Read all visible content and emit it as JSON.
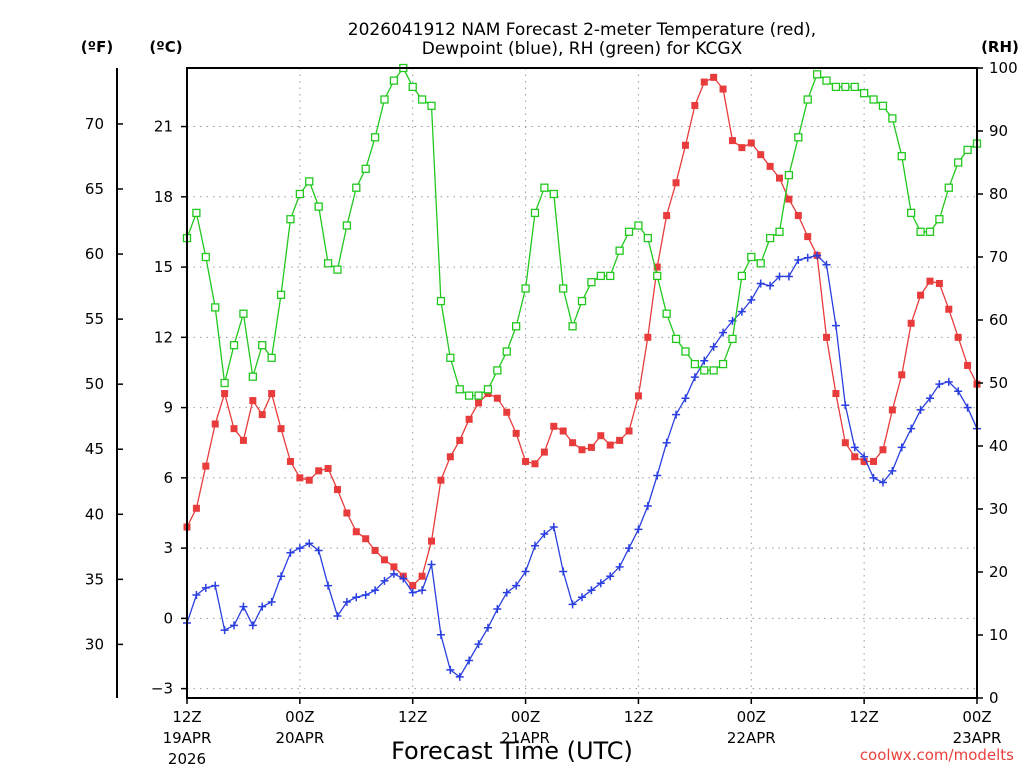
{
  "chart_data": {
    "type": "line",
    "title_line1": "2026041912 NAM Forecast 2-meter Temperature (red),",
    "title_line2": "Dewpoint (blue), RH (green) for KCGX",
    "xlabel": "Forecast Time (UTC)",
    "credit": "coolwx.com/modelts",
    "units": {
      "fahrenheit": "(ºF)",
      "celsius": "(ºC)",
      "rh": "(RH)"
    },
    "x_hours": [
      0,
      1,
      2,
      3,
      4,
      5,
      6,
      7,
      8,
      9,
      10,
      11,
      12,
      13,
      14,
      15,
      16,
      17,
      18,
      19,
      20,
      21,
      22,
      23,
      24,
      25,
      26,
      27,
      28,
      29,
      30,
      31,
      32,
      33,
      34,
      35,
      36,
      37,
      38,
      39,
      40,
      41,
      42,
      43,
      44,
      45,
      46,
      47,
      48,
      49,
      50,
      51,
      52,
      53,
      54,
      55,
      56,
      57,
      58,
      59,
      60,
      61,
      62,
      63,
      64,
      65,
      66,
      67,
      68,
      69,
      70,
      71,
      72,
      73,
      74,
      75,
      76,
      77,
      78,
      79,
      80,
      81,
      82,
      83,
      84
    ],
    "x_ticks": [
      {
        "hour": 0,
        "label": "12Z",
        "sub1": "19APR",
        "sub2": "2026"
      },
      {
        "hour": 12,
        "label": "00Z",
        "sub1": "20APR",
        "sub2": ""
      },
      {
        "hour": 24,
        "label": "12Z",
        "sub1": "",
        "sub2": ""
      },
      {
        "hour": 36,
        "label": "00Z",
        "sub1": "21APR",
        "sub2": ""
      },
      {
        "hour": 48,
        "label": "12Z",
        "sub1": "",
        "sub2": ""
      },
      {
        "hour": 60,
        "label": "00Z",
        "sub1": "22APR",
        "sub2": ""
      },
      {
        "hour": 72,
        "label": "12Z",
        "sub1": "",
        "sub2": ""
      },
      {
        "hour": 84,
        "label": "00Z",
        "sub1": "23APR",
        "sub2": ""
      }
    ],
    "x_range": [
      0,
      84
    ],
    "y_celsius_range": [
      -3.4,
      23.5
    ],
    "y_celsius_ticks": [
      -3,
      0,
      3,
      6,
      9,
      12,
      15,
      18,
      21
    ],
    "y_fahrenheit_ticks": [
      30,
      35,
      40,
      45,
      50,
      55,
      60,
      65,
      70
    ],
    "y_rh_range": [
      0,
      100
    ],
    "y_rh_ticks": [
      0,
      10,
      20,
      30,
      40,
      50,
      60,
      70,
      80,
      90,
      100
    ],
    "grid": true,
    "series": [
      {
        "name": "Temperature",
        "color": "#e83b3b",
        "marker": "filled-square",
        "axis": "celsius",
        "values": [
          3.9,
          4.7,
          6.5,
          8.3,
          9.6,
          8.1,
          7.6,
          9.3,
          8.7,
          9.6,
          8.1,
          6.7,
          6.0,
          5.9,
          6.3,
          6.4,
          5.5,
          4.5,
          3.7,
          3.4,
          2.9,
          2.5,
          2.2,
          1.8,
          1.4,
          1.8,
          3.3,
          5.9,
          6.9,
          7.6,
          8.5,
          9.2,
          9.6,
          9.4,
          8.8,
          7.9,
          6.7,
          6.6,
          7.1,
          8.2,
          8.0,
          7.5,
          7.2,
          7.3,
          7.8,
          7.4,
          7.6,
          8.0,
          9.5,
          12.0,
          15.0,
          17.2,
          18.6,
          20.2,
          21.9,
          22.9,
          23.1,
          22.6,
          20.4,
          20.1,
          20.3,
          19.8,
          19.3,
          18.8,
          17.9,
          17.2,
          16.3,
          15.5,
          12.0,
          9.6,
          7.5,
          6.9,
          6.7,
          6.7,
          7.2,
          8.9,
          10.4,
          12.6,
          13.8,
          14.4,
          14.3,
          13.2,
          12.0,
          10.8,
          10.0
        ]
      },
      {
        "name": "Dewpoint",
        "color": "#2a3fe0",
        "marker": "plus",
        "axis": "celsius",
        "values": [
          -0.2,
          1.0,
          1.3,
          1.4,
          -0.5,
          -0.3,
          0.5,
          -0.3,
          0.5,
          0.7,
          1.8,
          2.8,
          3.0,
          3.2,
          2.9,
          1.4,
          0.1,
          0.7,
          0.9,
          1.0,
          1.2,
          1.6,
          1.9,
          1.7,
          1.1,
          1.2,
          2.3,
          -0.7,
          -2.2,
          -2.5,
          -1.8,
          -1.1,
          -0.4,
          0.4,
          1.1,
          1.4,
          2.0,
          3.1,
          3.6,
          3.9,
          2.0,
          0.6,
          0.9,
          1.2,
          1.5,
          1.8,
          2.2,
          3.0,
          3.8,
          4.8,
          6.1,
          7.5,
          8.7,
          9.4,
          10.3,
          11.0,
          11.6,
          12.2,
          12.7,
          13.1,
          13.6,
          14.3,
          14.2,
          14.6,
          14.6,
          15.3,
          15.4,
          15.5,
          15.1,
          12.5,
          9.1,
          7.3,
          6.9,
          6.0,
          5.8,
          6.3,
          7.3,
          8.1,
          8.9,
          9.4,
          10.0,
          10.1,
          9.7,
          9.0,
          8.1
        ]
      },
      {
        "name": "RH",
        "color": "#22c81e",
        "marker": "open-square",
        "axis": "rh",
        "values": [
          73,
          77,
          70,
          62,
          50,
          56,
          61,
          51,
          56,
          54,
          64,
          76,
          80,
          82,
          78,
          69,
          68,
          75,
          81,
          84,
          89,
          95,
          98,
          100,
          97,
          95,
          94,
          63,
          54,
          49,
          48,
          48,
          49,
          52,
          55,
          59,
          65,
          77,
          81,
          80,
          65,
          59,
          63,
          66,
          67,
          67,
          71,
          74,
          75,
          73,
          67,
          61,
          57,
          55,
          53,
          52,
          52,
          53,
          57,
          67,
          70,
          69,
          73,
          74,
          83,
          89,
          95,
          99,
          98,
          97,
          97,
          97,
          96,
          95,
          94,
          92,
          86,
          77,
          74,
          74,
          76,
          81,
          85,
          87,
          88
        ]
      }
    ]
  }
}
